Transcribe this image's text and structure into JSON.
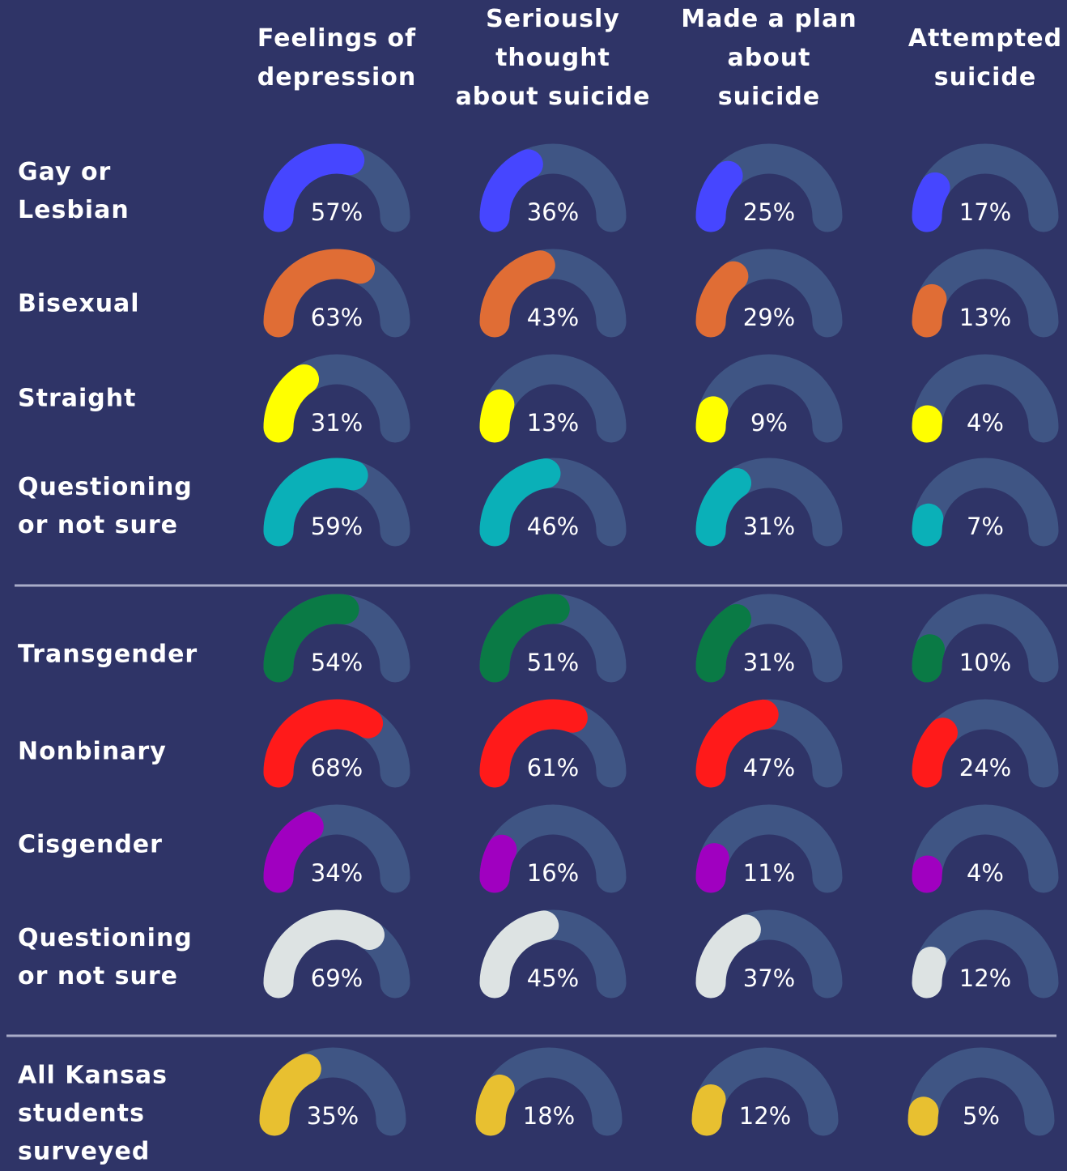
{
  "chart_data": {
    "type": "gauge",
    "categories": [
      "Feelings of\ndepression",
      "Seriously\nthought\nabout suicide",
      "Made a plan\nabout\nsuicide",
      "Attempted\nsuicide"
    ],
    "ylim": [
      0,
      100
    ],
    "track_color": "#3f5584",
    "series": [
      {
        "name": "Gay or\nLesbian",
        "color": "#4646ff",
        "values": [
          57,
          36,
          25,
          17
        ],
        "value_labels": [
          "57%",
          "36%",
          "25%",
          "17%"
        ]
      },
      {
        "name": "Bisexual",
        "color": "#e06d35",
        "values": [
          63,
          43,
          29,
          13
        ],
        "value_labels": [
          "63%",
          "43%",
          "29%",
          "13%"
        ]
      },
      {
        "name": "Straight",
        "color": "#ffff00",
        "values": [
          31,
          13,
          9,
          4
        ],
        "value_labels": [
          "31%",
          "13%",
          "9%",
          "4%"
        ]
      },
      {
        "name": "Questioning\nor not sure",
        "color": "#0ab0b8",
        "values": [
          59,
          46,
          31,
          7
        ],
        "value_labels": [
          "59%",
          "46%",
          "31%",
          "7%"
        ]
      },
      {
        "name": "Transgender",
        "color": "#0a7a45",
        "values": [
          54,
          51,
          31,
          10
        ],
        "value_labels": [
          "54%",
          "51%",
          "31%",
          "10%"
        ]
      },
      {
        "name": "Nonbinary",
        "color": "#ff1a1a",
        "values": [
          68,
          61,
          47,
          24
        ],
        "value_labels": [
          "68%",
          "61%",
          "47%",
          "24%"
        ]
      },
      {
        "name": "Cisgender",
        "color": "#a000c0",
        "values": [
          34,
          16,
          11,
          4
        ],
        "value_labels": [
          "34%",
          "16%",
          "11%",
          "4%"
        ]
      },
      {
        "name": "Questioning\nor not sure",
        "color": "#dde3e3",
        "values": [
          69,
          45,
          37,
          12
        ],
        "value_labels": [
          "69%",
          "45%",
          "37%",
          "12%"
        ]
      },
      {
        "name": "All Kansas\nstudents\nsurveyed",
        "color": "#e8c030",
        "values": [
          35,
          18,
          12,
          5
        ],
        "value_labels": [
          "35%",
          "18%",
          "12%",
          "5%"
        ]
      }
    ]
  }
}
